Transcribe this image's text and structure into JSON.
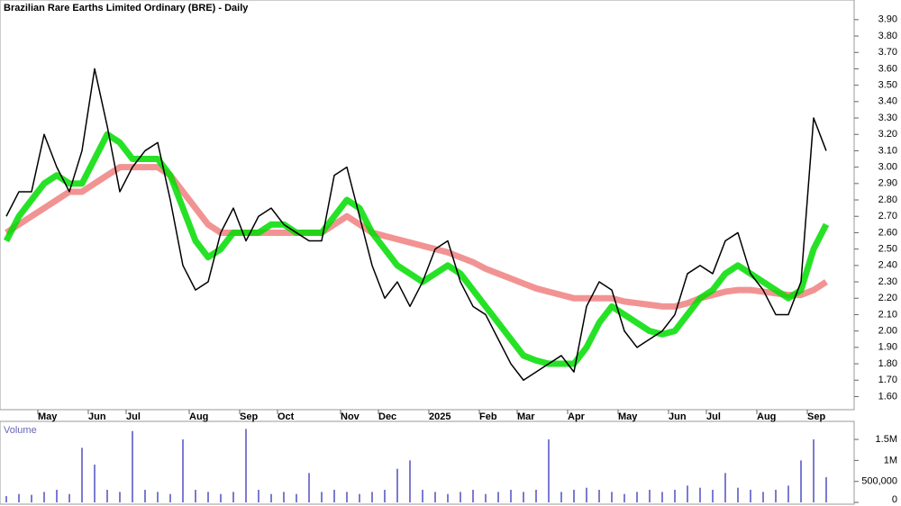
{
  "chart_data": [
    {
      "type": "line",
      "title": "Brazilian Rare Earths Limited Ordinary (BRE) - Daily",
      "categories": [
        null,
        null,
        null,
        "May",
        null,
        null,
        null,
        "Jun",
        null,
        null,
        "Jul",
        null,
        null,
        null,
        null,
        "Aug",
        null,
        null,
        null,
        "Sep",
        null,
        null,
        "Oct",
        null,
        null,
        null,
        null,
        "Nov",
        null,
        null,
        "Dec",
        null,
        null,
        null,
        "2025",
        null,
        null,
        null,
        "Feb",
        null,
        null,
        "Mar",
        null,
        null,
        null,
        "Apr",
        null,
        null,
        null,
        "May",
        null,
        null,
        null,
        "Jun",
        null,
        null,
        "Jul",
        null,
        null,
        null,
        "Aug",
        null,
        null,
        null,
        "Sep",
        null
      ],
      "series": [
        {
          "color": "#f08080",
          "values": [
            2.6,
            2.65,
            2.7,
            2.75,
            2.8,
            2.85,
            2.85,
            2.9,
            2.95,
            3.0,
            3.0,
            3.0,
            3.0,
            2.95,
            2.85,
            2.75,
            2.65,
            2.6,
            2.6,
            2.6,
            2.6,
            2.6,
            2.6,
            2.6,
            2.6,
            2.6,
            2.65,
            2.7,
            2.65,
            2.6,
            2.58,
            2.56,
            2.54,
            2.52,
            2.5,
            2.48,
            2.45,
            2.42,
            2.38,
            2.35,
            2.32,
            2.29,
            2.26,
            2.24,
            2.22,
            2.2,
            2.2,
            2.2,
            2.2,
            2.18,
            2.17,
            2.16,
            2.15,
            2.15,
            2.17,
            2.2,
            2.22,
            2.24,
            2.25,
            2.25,
            2.24,
            2.23,
            2.22,
            2.22,
            2.25,
            2.3
          ]
        },
        {
          "color": "#00dd00",
          "values": [
            2.55,
            2.7,
            2.8,
            2.9,
            2.95,
            2.9,
            2.9,
            3.05,
            3.2,
            3.15,
            3.05,
            3.05,
            3.05,
            2.95,
            2.75,
            2.55,
            2.45,
            2.5,
            2.6,
            2.6,
            2.6,
            2.65,
            2.65,
            2.6,
            2.6,
            2.6,
            2.7,
            2.8,
            2.75,
            2.6,
            2.5,
            2.4,
            2.35,
            2.3,
            2.35,
            2.4,
            2.35,
            2.25,
            2.15,
            2.05,
            1.95,
            1.85,
            1.82,
            1.8,
            1.8,
            1.8,
            1.9,
            2.05,
            2.15,
            2.1,
            2.05,
            2.0,
            1.98,
            2.0,
            2.1,
            2.2,
            2.25,
            2.35,
            2.4,
            2.35,
            2.3,
            2.25,
            2.2,
            2.25,
            2.5,
            2.65
          ]
        },
        {
          "color": "#000000",
          "values": [
            2.7,
            2.85,
            2.85,
            3.2,
            3.0,
            2.85,
            3.1,
            3.6,
            3.25,
            2.85,
            3.0,
            3.1,
            3.15,
            2.8,
            2.4,
            2.25,
            2.3,
            2.6,
            2.75,
            2.55,
            2.7,
            2.75,
            2.65,
            2.6,
            2.55,
            2.55,
            2.95,
            3.0,
            2.7,
            2.4,
            2.2,
            2.3,
            2.15,
            2.3,
            2.5,
            2.55,
            2.3,
            2.15,
            2.1,
            1.95,
            1.8,
            1.7,
            1.75,
            1.8,
            1.85,
            1.75,
            2.15,
            2.3,
            2.25,
            2.0,
            1.9,
            1.95,
            2.0,
            2.1,
            2.35,
            2.4,
            2.35,
            2.55,
            2.6,
            2.35,
            2.25,
            2.1,
            2.1,
            2.3,
            3.3,
            3.1
          ]
        }
      ],
      "ylim": [
        1.52,
        4.02
      ],
      "yticks": [
        {
          "value": 1.6,
          "label": "1.60"
        },
        {
          "value": 1.7,
          "label": "1.70"
        },
        {
          "value": 1.8,
          "label": "1.80"
        },
        {
          "value": 1.9,
          "label": "1.90"
        },
        {
          "value": 2.0,
          "label": "2.00"
        },
        {
          "value": 2.1,
          "label": "2.10"
        },
        {
          "value": 2.2,
          "label": "2.20"
        },
        {
          "value": 2.3,
          "label": "2.30"
        },
        {
          "value": 2.4,
          "label": "2.40"
        },
        {
          "value": 2.5,
          "label": "2.50"
        },
        {
          "value": 2.6,
          "label": "2.60"
        },
        {
          "value": 2.7,
          "label": "2.70"
        },
        {
          "value": 2.8,
          "label": "2.80"
        },
        {
          "value": 2.9,
          "label": "2.90"
        },
        {
          "value": 3.0,
          "label": "3.00"
        },
        {
          "value": 3.1,
          "label": "3.10"
        },
        {
          "value": 3.2,
          "label": "3.20"
        },
        {
          "value": 3.3,
          "label": "3.30"
        },
        {
          "value": 3.4,
          "label": "3.40"
        },
        {
          "value": 3.5,
          "label": "3.50"
        },
        {
          "value": 3.6,
          "label": "3.60"
        },
        {
          "value": 3.7,
          "label": "3.70"
        },
        {
          "value": 3.8,
          "label": "3.80"
        },
        {
          "value": 3.9,
          "label": "3.90"
        }
      ]
    },
    {
      "type": "bar",
      "title": "Volume",
      "color": "#7b7bd0",
      "values": [
        150000,
        200000,
        180000,
        250000,
        300000,
        200000,
        1300000,
        900000,
        300000,
        250000,
        1700000,
        300000,
        250000,
        200000,
        1500000,
        300000,
        250000,
        200000,
        250000,
        1750000,
        300000,
        200000,
        250000,
        200000,
        700000,
        250000,
        300000,
        250000,
        200000,
        250000,
        300000,
        800000,
        1000000,
        300000,
        250000,
        200000,
        250000,
        300000,
        200000,
        250000,
        300000,
        250000,
        300000,
        1500000,
        250000,
        300000,
        350000,
        300000,
        250000,
        200000,
        250000,
        300000,
        250000,
        300000,
        400000,
        350000,
        300000,
        700000,
        350000,
        300000,
        250000,
        300000,
        400000,
        1000000,
        1500000,
        600000
      ],
      "ylim": [
        0,
        1930000
      ],
      "yticks": [
        0,
        {
          "value": 500000,
          "label": "500,000"
        },
        {
          "value": 1000000,
          "label": "1M"
        },
        {
          "value": 1500000,
          "label": "1.5M"
        }
      ]
    }
  ]
}
